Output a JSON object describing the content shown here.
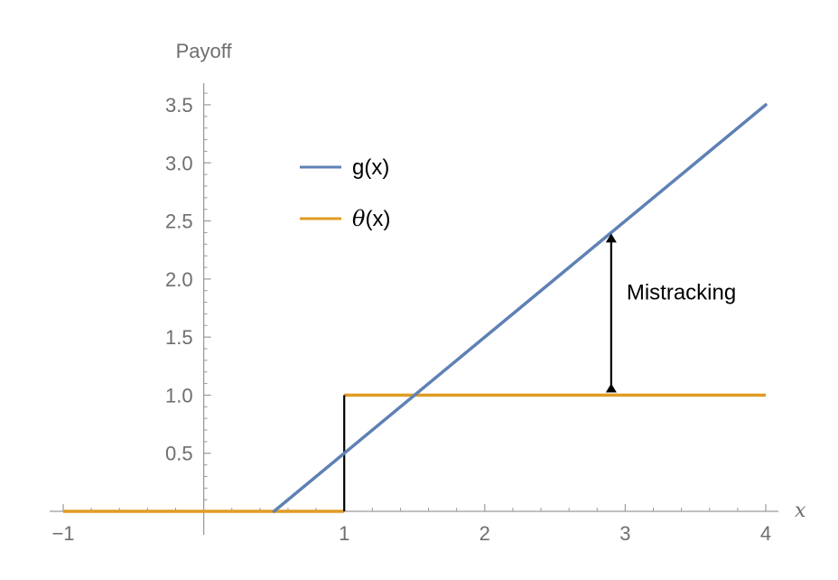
{
  "chart_data": {
    "type": "line",
    "title": "",
    "xlabel": "x",
    "ylabel": "Payoff",
    "xlim": [
      -1,
      4.05
    ],
    "ylim": [
      0,
      3.65
    ],
    "x_ticks": [
      {
        "value": -1,
        "label": "−1"
      },
      {
        "value": 1,
        "label": "1"
      },
      {
        "value": 2,
        "label": "2"
      },
      {
        "value": 3,
        "label": "3"
      },
      {
        "value": 4,
        "label": "4"
      }
    ],
    "y_ticks": [
      {
        "value": 0.5,
        "label": "0.5"
      },
      {
        "value": 1.0,
        "label": "1.0"
      },
      {
        "value": 1.5,
        "label": "1.5"
      },
      {
        "value": 2.0,
        "label": "2.0"
      },
      {
        "value": 2.5,
        "label": "2.5"
      },
      {
        "value": 3.0,
        "label": "3.0"
      },
      {
        "value": 3.5,
        "label": "3.5"
      }
    ],
    "series": [
      {
        "name": "g(x)",
        "color": "#5e81b5",
        "points": [
          [
            0.5,
            0
          ],
          [
            4,
            3.5
          ]
        ]
      },
      {
        "name": "θ(x)",
        "name_parts": [
          "θ",
          "(x)"
        ],
        "color": "#e19c24",
        "points": [
          [
            -1,
            0
          ],
          [
            1,
            0
          ],
          [
            1,
            1
          ],
          [
            4,
            1
          ]
        ],
        "jump_segment": {
          "x": 1,
          "y0": 0,
          "y1": 1,
          "color": "#000000"
        }
      }
    ],
    "annotations": [
      {
        "text": "Mistracking",
        "type": "double-arrow",
        "x": 2.9,
        "y_from": 1,
        "y_to": 2.4
      }
    ],
    "legend_position": "upper-left-inside",
    "grid": false
  }
}
